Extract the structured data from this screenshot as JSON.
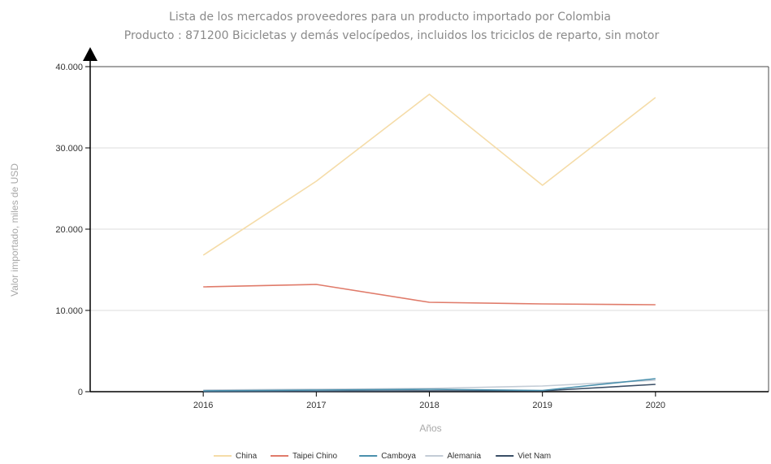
{
  "chart_data": {
    "type": "line",
    "title": "Lista de los mercados proveedores para un producto importado por Colombia",
    "subtitle": "Producto : 871200 Bicicletas y demás velocípedos, incluidos los triciclos de reparto, sin motor",
    "xlabel": "Años",
    "ylabel": "Valor importado, miles de USD",
    "x": [
      "2016",
      "2017",
      "2018",
      "2019",
      "2020"
    ],
    "xlim": [
      2015,
      2021
    ],
    "ylim": [
      0,
      40000
    ],
    "yticks": [
      0,
      10000,
      20000,
      30000,
      40000
    ],
    "ytick_labels": [
      "0",
      "10.000",
      "20.000",
      "30.000",
      "40.000"
    ],
    "grid": true,
    "legend_position": "bottom",
    "series": [
      {
        "name": "China",
        "color": "#f5dca8",
        "values": [
          16800,
          25900,
          36600,
          25400,
          36200
        ]
      },
      {
        "name": "Taipei Chino",
        "color": "#e07b6a",
        "values": [
          12900,
          13200,
          11000,
          10800,
          10700
        ]
      },
      {
        "name": "Camboya",
        "color": "#4a90ad",
        "values": [
          100,
          200,
          300,
          150,
          1600
        ]
      },
      {
        "name": "Alemania",
        "color": "#c3ccd6",
        "values": [
          200,
          300,
          400,
          700,
          1400
        ]
      },
      {
        "name": "Viet Nam",
        "color": "#3a4e66",
        "values": [
          0,
          50,
          100,
          100,
          900
        ]
      }
    ]
  }
}
